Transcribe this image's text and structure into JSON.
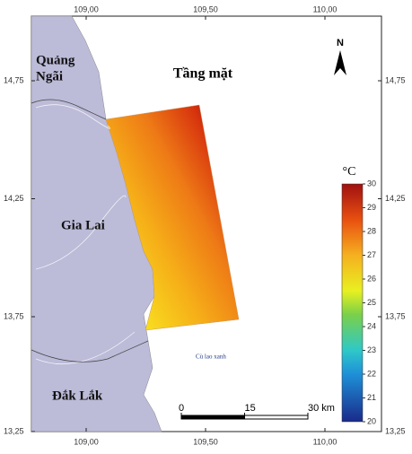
{
  "map": {
    "title": "Tầng mặt",
    "north": "N",
    "lon_ticks": [
      {
        "value": 109,
        "label": "109,00"
      },
      {
        "value": 109.5,
        "label": "109,50"
      },
      {
        "value": 110,
        "label": "110,00"
      }
    ],
    "lat_ticks": [
      {
        "value": 14.75,
        "label": "14,75"
      },
      {
        "value": 14.25,
        "label": "14,25"
      },
      {
        "value": 13.75,
        "label": "13,75"
      },
      {
        "value": 13.25,
        "label": "13,25"
      }
    ],
    "provinces": [
      {
        "lines": [
          "Quảng",
          "Ngãi"
        ]
      },
      {
        "lines": [
          "Gia Lai"
        ]
      },
      {
        "lines": [
          "Đắk Lắk"
        ]
      }
    ],
    "island": "Cù lao xanh",
    "colorbar": {
      "unit": "°C",
      "range": [
        20,
        30
      ],
      "ticks": [
        20,
        21,
        22,
        23,
        24,
        25,
        26,
        27,
        28,
        29,
        30
      ]
    },
    "scale_bar": [
      {
        "value": 0,
        "label": "0"
      },
      {
        "value": 15,
        "label": "15"
      },
      {
        "value": 30,
        "label": "30 km"
      }
    ]
  }
}
